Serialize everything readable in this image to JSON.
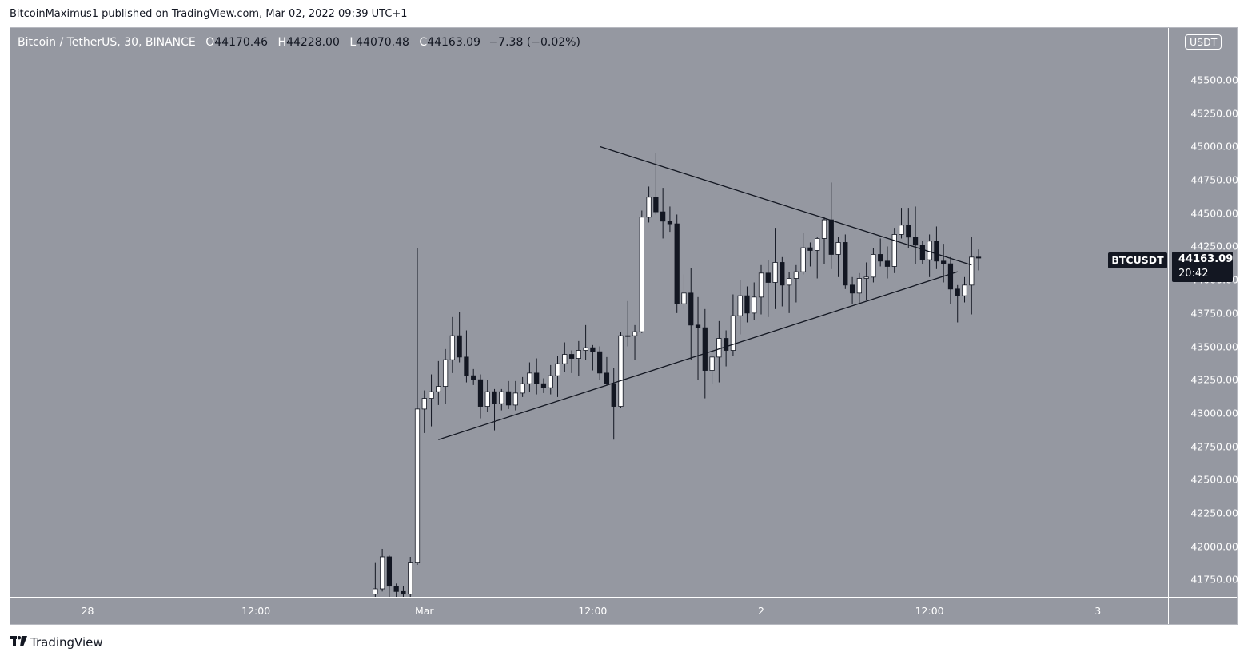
{
  "header": {
    "published_line": "BitcoinMaximus1 published on TradingView.com, Mar 02, 2022 09:39 UTC+1"
  },
  "legend": {
    "symbol": "Bitcoin / TetherUS, 30, BINANCE",
    "o_label": "O",
    "o_value": "44170.46",
    "h_label": "H",
    "h_value": "44228.00",
    "l_label": "L",
    "l_value": "44070.48",
    "c_label": "C",
    "c_value": "44163.09",
    "change": "−7.38 (−0.02%)"
  },
  "axis": {
    "currency": "USDT",
    "symbol_tag": "BTCUSDT",
    "last_price": "44163.09",
    "countdown": "20:42"
  },
  "footer": {
    "brand": "TradingView",
    "logo_icon": "tradingview-logo-icon"
  },
  "colors": {
    "background": "#9598a1",
    "up_candle": "#ffffff",
    "down_candle": "#131722",
    "trendline": "#131722",
    "axis_text": "#ffffff",
    "price_tag": "#131722"
  },
  "chart_data": {
    "type": "candlestick",
    "title": "Bitcoin / TetherUS, 30, BINANCE",
    "ylim": [
      41620,
      45890
    ],
    "y_ticks": [
      "45500.00",
      "45250.00",
      "45000.00",
      "44750.00",
      "44500.00",
      "44250.00",
      "44000.00",
      "43750.00",
      "43500.00",
      "43250.00",
      "43000.00",
      "42750.00",
      "42500.00",
      "42250.00",
      "42000.00",
      "41750.00"
    ],
    "x_ticks": [
      "28",
      "12:00",
      "Mar",
      "12:00",
      "2",
      "12:00",
      "3"
    ],
    "x_range": [
      "2022-02-27T18:30",
      "2022-03-03T05:00"
    ],
    "x_tick_times": [
      "2022-02-28T00:00",
      "2022-02-28T12:00",
      "2022-03-01T00:00",
      "2022-03-01T12:00",
      "2022-03-02T00:00",
      "2022-03-02T12:00",
      "2022-03-03T00:00"
    ],
    "candle_interval_minutes": 30,
    "first_candle_time": "2022-02-28T20:30",
    "candles": [
      [
        41640,
        41880,
        41600,
        41680
      ],
      [
        41680,
        41980,
        41660,
        41920
      ],
      [
        41920,
        41930,
        41600,
        41700
      ],
      [
        41700,
        41720,
        41580,
        41660
      ],
      [
        41660,
        41700,
        41600,
        41640
      ],
      [
        41640,
        41920,
        41620,
        41880
      ],
      [
        41880,
        44240,
        41860,
        43030
      ],
      [
        43030,
        43170,
        42850,
        43110
      ],
      [
        43110,
        43290,
        42900,
        43160
      ],
      [
        43160,
        43390,
        43060,
        43200
      ],
      [
        43200,
        43480,
        43070,
        43400
      ],
      [
        43400,
        43720,
        43300,
        43580
      ],
      [
        43580,
        43760,
        43380,
        43420
      ],
      [
        43420,
        43620,
        43230,
        43280
      ],
      [
        43280,
        43330,
        43210,
        43250
      ],
      [
        43250,
        43290,
        42960,
        43050
      ],
      [
        43050,
        43250,
        43010,
        43160
      ],
      [
        43160,
        43180,
        42870,
        43070
      ],
      [
        43070,
        43180,
        43020,
        43160
      ],
      [
        43160,
        43240,
        43030,
        43060
      ],
      [
        43060,
        43240,
        43020,
        43150
      ],
      [
        43150,
        43270,
        43120,
        43220
      ],
      [
        43220,
        43380,
        43160,
        43300
      ],
      [
        43300,
        43410,
        43140,
        43220
      ],
      [
        43220,
        43260,
        43150,
        43190
      ],
      [
        43190,
        43360,
        43140,
        43280
      ],
      [
        43280,
        43430,
        43120,
        43370
      ],
      [
        43370,
        43530,
        43310,
        43440
      ],
      [
        43440,
        43470,
        43300,
        43410
      ],
      [
        43410,
        43540,
        43280,
        43470
      ],
      [
        43470,
        43660,
        43400,
        43490
      ],
      [
        43490,
        43510,
        43320,
        43460
      ],
      [
        43460,
        43500,
        43250,
        43300
      ],
      [
        43300,
        43420,
        43210,
        43220
      ],
      [
        43220,
        43340,
        42800,
        43050
      ],
      [
        43050,
        43610,
        43040,
        43580
      ],
      [
        43580,
        43840,
        43500,
        43580
      ],
      [
        43580,
        43660,
        43400,
        43610
      ],
      [
        43610,
        44520,
        43600,
        44470
      ],
      [
        44470,
        44700,
        44430,
        44620
      ],
      [
        44620,
        44950,
        44490,
        44510
      ],
      [
        44510,
        44690,
        44310,
        44440
      ],
      [
        44440,
        44550,
        44360,
        44420
      ],
      [
        44420,
        44490,
        43750,
        43820
      ],
      [
        43820,
        44040,
        43780,
        43900
      ],
      [
        43900,
        44090,
        43400,
        43660
      ],
      [
        43660,
        43870,
        43250,
        43640
      ],
      [
        43640,
        43780,
        43110,
        43320
      ],
      [
        43320,
        43430,
        43220,
        43420
      ],
      [
        43420,
        43690,
        43230,
        43560
      ],
      [
        43560,
        43620,
        43350,
        43470
      ],
      [
        43470,
        43890,
        43430,
        43730
      ],
      [
        43730,
        44000,
        43590,
        43880
      ],
      [
        43880,
        43950,
        43680,
        43750
      ],
      [
        43750,
        43980,
        43700,
        43870
      ],
      [
        43870,
        44110,
        43740,
        44050
      ],
      [
        44050,
        44150,
        43720,
        43980
      ],
      [
        43980,
        44390,
        43780,
        44130
      ],
      [
        44130,
        44170,
        43800,
        43960
      ],
      [
        43960,
        44060,
        43750,
        44010
      ],
      [
        44010,
        44110,
        43830,
        44060
      ],
      [
        44060,
        44350,
        44040,
        44240
      ],
      [
        44240,
        44280,
        44100,
        44220
      ],
      [
        44220,
        44320,
        44010,
        44310
      ],
      [
        44310,
        44470,
        44120,
        44450
      ],
      [
        44450,
        44730,
        44080,
        44190
      ],
      [
        44190,
        44320,
        44020,
        44280
      ],
      [
        44280,
        44340,
        43930,
        43960
      ],
      [
        43960,
        44020,
        43820,
        43900
      ],
      [
        43900,
        44050,
        43820,
        44010
      ],
      [
        44010,
        44130,
        43850,
        44020
      ],
      [
        44020,
        44240,
        43980,
        44190
      ],
      [
        44190,
        44310,
        44100,
        44140
      ],
      [
        44140,
        44250,
        44010,
        44100
      ],
      [
        44100,
        44390,
        44050,
        44340
      ],
      [
        44340,
        44540,
        44310,
        44410
      ],
      [
        44410,
        44540,
        44240,
        44320
      ],
      [
        44320,
        44550,
        44120,
        44260
      ],
      [
        44260,
        44290,
        44120,
        44150
      ],
      [
        44150,
        44340,
        44020,
        44290
      ],
      [
        44290,
        44400,
        44080,
        44140
      ],
      [
        44140,
        44270,
        43980,
        44120
      ],
      [
        44120,
        44170,
        43820,
        43930
      ],
      [
        43930,
        43960,
        43680,
        43880
      ],
      [
        43880,
        44020,
        43830,
        43960
      ],
      [
        43960,
        44320,
        43740,
        44170
      ],
      [
        44170,
        44228,
        44070,
        44163
      ]
    ],
    "trendlines": [
      {
        "name": "descending-resistance",
        "start": [
          "2022-03-01T12:30",
          45000
        ],
        "end": [
          "2022-03-02T15:00",
          44110
        ]
      },
      {
        "name": "ascending-support",
        "start": [
          "2022-03-01T01:00",
          42800
        ],
        "end": [
          "2022-03-02T14:00",
          44060
        ]
      }
    ]
  }
}
